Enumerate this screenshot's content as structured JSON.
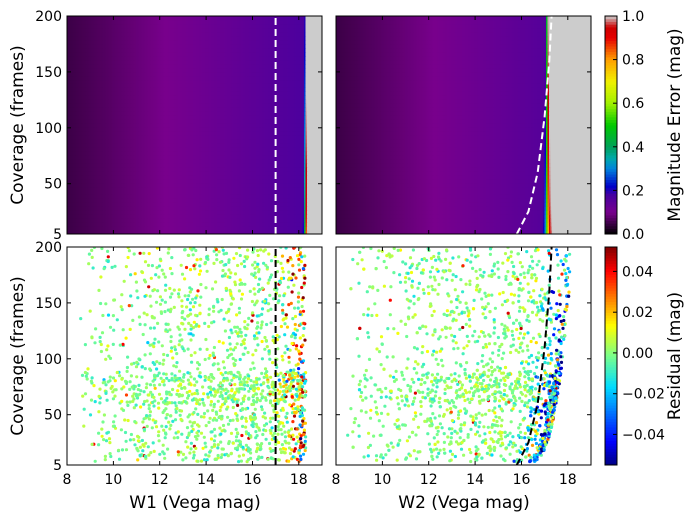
{
  "colors": {
    "frame": "#000000",
    "boundary_top": "#ffffff",
    "boundary_bottom": "#000000"
  },
  "chart_data": [
    {
      "type": "heatmap",
      "panel": "top-left",
      "xlabel": "",
      "ylabel": "Coverage (frames)",
      "xlim": [
        8,
        19
      ],
      "ylim": [
        5,
        200
      ],
      "yticks": [
        "5",
        "50",
        "100",
        "150",
        "200"
      ],
      "mag_limit": 18.28,
      "sigma_at_min_coverage": 0.08,
      "sigma_at_max_coverage": 0.015,
      "boundary_line": {
        "style": "dashed",
        "color": "white",
        "x_at_cov_5": 17.0,
        "x_at_cov_200": 17.0
      }
    },
    {
      "type": "heatmap",
      "panel": "top-right",
      "xlabel": "",
      "ylabel": "",
      "xlim": [
        8,
        19
      ],
      "ylim": [
        5,
        200
      ],
      "mag_limit": 17.1,
      "sigma_at_min_coverage": 0.15,
      "sigma_at_max_coverage": 0.03,
      "boundary_line": {
        "style": "dashed",
        "color": "white",
        "points": [
          [
            15.8,
            5
          ],
          [
            16.3,
            25
          ],
          [
            16.7,
            60
          ],
          [
            17.0,
            110
          ],
          [
            17.2,
            160
          ],
          [
            17.3,
            200
          ]
        ]
      }
    },
    {
      "type": "scatter",
      "panel": "bottom-left",
      "xlabel": "W1 (Vega mag)",
      "ylabel": "Coverage (frames)",
      "xlim": [
        8,
        19
      ],
      "ylim": [
        5,
        200
      ],
      "xticks": [
        "8",
        "10",
        "12",
        "14",
        "16",
        "18"
      ],
      "yticks": [
        "5",
        "50",
        "100",
        "150",
        "200"
      ],
      "edge_mag": 18.3,
      "boundary_line": {
        "style": "dashed",
        "color": "black",
        "x_at_cov_5": 17.0,
        "x_at_cov_200": 17.0
      }
    },
    {
      "type": "scatter",
      "panel": "bottom-right",
      "xlabel": "W2 (Vega mag)",
      "ylabel": "",
      "xlim": [
        8,
        19
      ],
      "ylim": [
        5,
        200
      ],
      "xticks": [
        "8",
        "10",
        "12",
        "14",
        "16",
        "18"
      ],
      "edge_mag": 18.2,
      "boundary_line": {
        "style": "dashed",
        "color": "black",
        "points": [
          [
            15.8,
            5
          ],
          [
            16.3,
            25
          ],
          [
            16.7,
            60
          ],
          [
            17.0,
            110
          ],
          [
            17.2,
            160
          ],
          [
            17.3,
            200
          ]
        ]
      }
    }
  ],
  "colorbars": [
    {
      "label": "Magnitude Error (mag)",
      "colormap": "nipy_spectral",
      "range": [
        0.0,
        1.0
      ],
      "ticks": [
        "0.0",
        "0.2",
        "0.4",
        "0.6",
        "0.8",
        "1.0"
      ]
    },
    {
      "label": "Residual (mag)",
      "colormap": "jet",
      "range": [
        -0.055,
        0.052
      ],
      "ticks": [
        "−0.04",
        "−0.02",
        "0.00",
        "0.02",
        "0.04"
      ]
    }
  ]
}
